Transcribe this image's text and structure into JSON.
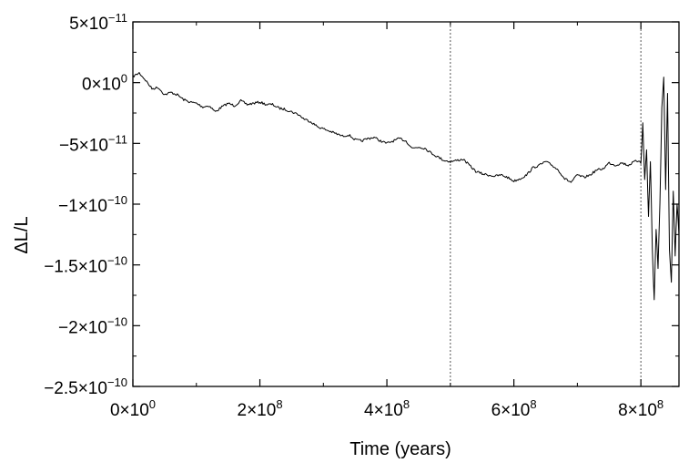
{
  "chart_data": {
    "type": "line",
    "title": "",
    "xlabel": "Time (years)",
    "ylabel": "ΔL/L",
    "xlim": [
      0,
      860000000
    ],
    "ylim": [
      -2.5e-10,
      5e-11
    ],
    "grid": false,
    "legend": "none",
    "line_color": "#000000",
    "x_ticks": [
      {
        "value": 0,
        "mantissa": "0×10",
        "exponent": "0"
      },
      {
        "value": 200000000,
        "mantissa": "2×10",
        "exponent": "8"
      },
      {
        "value": 400000000,
        "mantissa": "4×10",
        "exponent": "8"
      },
      {
        "value": 600000000,
        "mantissa": "6×10",
        "exponent": "8"
      },
      {
        "value": 800000000,
        "mantissa": "8×10",
        "exponent": "8"
      }
    ],
    "y_ticks": [
      {
        "value": 5e-11,
        "mantissa": "5×10",
        "exponent": "−11"
      },
      {
        "value": 0,
        "mantissa": "0×10",
        "exponent": "0"
      },
      {
        "value": -5e-11,
        "mantissa": "−5×10",
        "exponent": "−11"
      },
      {
        "value": -1e-10,
        "mantissa": "−1×10",
        "exponent": "−10"
      },
      {
        "value": -1.5e-10,
        "mantissa": "−1.5×10",
        "exponent": "−10"
      },
      {
        "value": -2e-10,
        "mantissa": "−2×10",
        "exponent": "−10"
      },
      {
        "value": -2.5e-10,
        "mantissa": "−2.5×10",
        "exponent": "−10"
      }
    ],
    "reference_lines_x": [
      500000000,
      800000000
    ],
    "reference_line_style": "dotted",
    "series": [
      {
        "x": [
          0,
          10000000,
          20000000,
          30000000,
          40000000,
          50000000,
          60000000,
          70000000,
          80000000,
          90000000,
          100000000,
          110000000,
          120000000,
          130000000,
          140000000,
          150000000,
          160000000,
          170000000,
          180000000,
          190000000,
          200000000,
          210000000,
          220000000,
          230000000,
          240000000,
          250000000,
          260000000,
          270000000,
          280000000,
          290000000,
          300000000,
          310000000,
          320000000,
          330000000,
          340000000,
          350000000,
          360000000,
          370000000,
          380000000,
          390000000,
          400000000,
          410000000,
          420000000,
          430000000,
          440000000,
          450000000,
          460000000,
          470000000,
          480000000,
          490000000,
          500000000,
          510000000,
          520000000,
          530000000,
          540000000,
          550000000,
          560000000,
          570000000,
          580000000,
          590000000,
          600000000,
          610000000,
          620000000,
          630000000,
          640000000,
          650000000,
          660000000,
          670000000,
          680000000,
          690000000,
          700000000,
          710000000,
          720000000,
          730000000,
          740000000,
          750000000,
          760000000,
          770000000,
          780000000,
          790000000,
          800000000,
          803000000,
          806000000,
          809000000,
          812000000,
          815000000,
          818000000,
          821000000,
          824000000,
          827000000,
          830000000,
          833000000,
          836000000,
          839000000,
          842000000,
          845000000,
          848000000,
          851000000,
          854000000,
          857000000,
          860000000
        ],
        "y": [
          5e-12,
          8e-12,
          2e-12,
          -5e-12,
          -4e-12,
          -1e-11,
          -8e-12,
          -1e-11,
          -1.4e-11,
          -1.6e-11,
          -1.7e-11,
          -2e-11,
          -1.9e-11,
          -2.4e-11,
          -2e-11,
          -1.7e-11,
          -1.9e-11,
          -1.5e-11,
          -1.8e-11,
          -1.7e-11,
          -1.6e-11,
          -1.8e-11,
          -1.8e-11,
          -2.1e-11,
          -2.2e-11,
          -2.4e-11,
          -2.6e-11,
          -3e-11,
          -3.2e-11,
          -3.6e-11,
          -3.8e-11,
          -4e-11,
          -4.2e-11,
          -4.4e-11,
          -4.3e-11,
          -4.7e-11,
          -4.8e-11,
          -4.6e-11,
          -4.5e-11,
          -4.8e-11,
          -5e-11,
          -4.8e-11,
          -4.6e-11,
          -4.8e-11,
          -5.4e-11,
          -5.3e-11,
          -5.4e-11,
          -5.8e-11,
          -6.1e-11,
          -6.4e-11,
          -6.5e-11,
          -6.4e-11,
          -6.3e-11,
          -6.8e-11,
          -7.3e-11,
          -7.5e-11,
          -7.6e-11,
          -7.7e-11,
          -7.6e-11,
          -7.8e-11,
          -8.1e-11,
          -7.9e-11,
          -7.6e-11,
          -7e-11,
          -6.8e-11,
          -6.5e-11,
          -6.8e-11,
          -7.2e-11,
          -7.9e-11,
          -8.2e-11,
          -7.6e-11,
          -7.8e-11,
          -7.6e-11,
          -7.2e-11,
          -7.1e-11,
          -6.6e-11,
          -6.8e-11,
          -6.6e-11,
          -6.8e-11,
          -6.5e-11,
          -6.4e-11,
          -3.5e-11,
          -8e-11,
          -5.5e-11,
          -1.1e-10,
          -6.5e-11,
          -1.35e-10,
          -1.8e-10,
          -1.2e-10,
          -1.5e-10,
          -1e-10,
          -2e-11,
          5e-12,
          -9e-11,
          -1e-11,
          -1.35e-10,
          -1.65e-10,
          -9e-11,
          -1.45e-10,
          -1e-10,
          -1.25e-10
        ]
      }
    ]
  }
}
